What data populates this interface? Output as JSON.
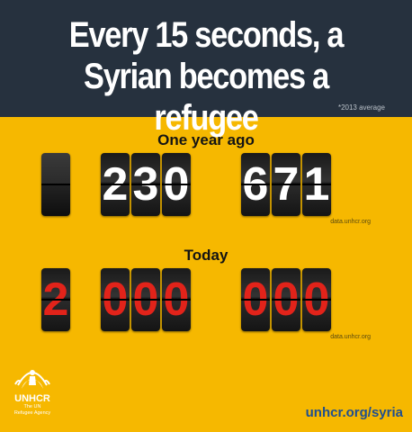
{
  "header": {
    "headline_line1": "Every 15 seconds, a",
    "headline_line2": "Syrian becomes a refugee",
    "footnote": "*2013 average"
  },
  "one_year_ago": {
    "label": "One year ago",
    "digits": [
      "",
      "2",
      "3",
      "0",
      "6",
      "7",
      "1"
    ],
    "source": "data.unhcr.org"
  },
  "today": {
    "label": "Today",
    "digits": [
      "2",
      "0",
      "0",
      "0",
      "0",
      "0",
      "0"
    ],
    "source": "data.unhcr.org"
  },
  "footer": {
    "logo_name": "UNHCR",
    "logo_sub_1": "The UN",
    "logo_sub_2": "Refugee Agency",
    "url": "unhcr.org/syria"
  },
  "colors": {
    "background": "#f6b800",
    "header": "#26313e",
    "digit_white": "#ffffff",
    "digit_red": "#e2231a",
    "url": "#1f4f8f"
  }
}
